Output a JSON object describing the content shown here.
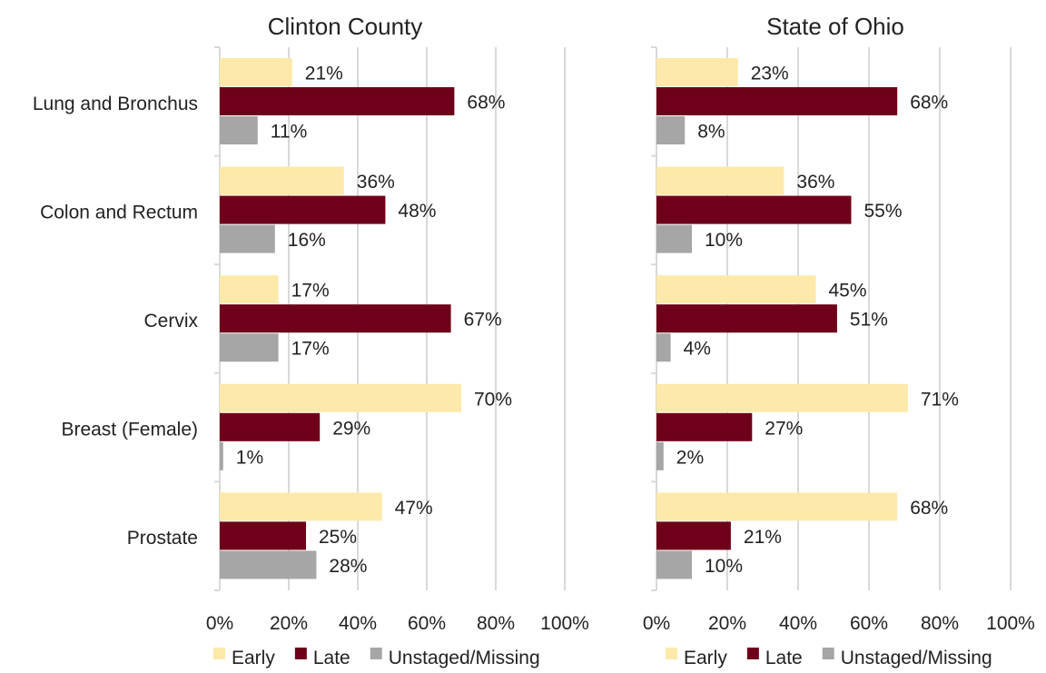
{
  "chart_data": [
    {
      "type": "bar",
      "orientation": "horizontal",
      "title": "Clinton County",
      "categories": [
        "Lung and Bronchus",
        "Colon and Rectum",
        "Cervix",
        "Breast (Female)",
        "Prostate"
      ],
      "series": [
        {
          "name": "Early",
          "color": "#fde9a9",
          "values": [
            21,
            36,
            17,
            70,
            47
          ]
        },
        {
          "name": "Late",
          "color": "#6e0019",
          "values": [
            68,
            48,
            67,
            29,
            25
          ]
        },
        {
          "name": "Unstaged/Missing",
          "color": "#a6a6a6",
          "values": [
            11,
            16,
            17,
            1,
            28
          ]
        }
      ],
      "data_labels": [
        [
          "21%",
          "36%",
          "17%",
          "70%",
          "47%"
        ],
        [
          "68%",
          "48%",
          "67%",
          "29%",
          "25%"
        ],
        [
          "11%",
          "16%",
          "17%",
          "1%",
          "28%"
        ]
      ],
      "xlim": [
        0,
        100
      ],
      "xticks": [
        "0%",
        "20%",
        "40%",
        "60%",
        "80%",
        "100%"
      ],
      "grid": true,
      "legend": "bottom"
    },
    {
      "type": "bar",
      "orientation": "horizontal",
      "title": "State of Ohio",
      "categories": [
        "Lung and Bronchus",
        "Colon and Rectum",
        "Cervix",
        "Breast (Female)",
        "Prostate"
      ],
      "series": [
        {
          "name": "Early",
          "color": "#fde9a9",
          "values": [
            23,
            36,
            45,
            71,
            68
          ]
        },
        {
          "name": "Late",
          "color": "#6e0019",
          "values": [
            68,
            55,
            51,
            27,
            21
          ]
        },
        {
          "name": "Unstaged/Missing",
          "color": "#a6a6a6",
          "values": [
            8,
            10,
            4,
            2,
            10
          ]
        }
      ],
      "data_labels": [
        [
          "23%",
          "36%",
          "45%",
          "71%",
          "68%"
        ],
        [
          "68%",
          "55%",
          "51%",
          "27%",
          "21%"
        ],
        [
          "8%",
          "10%",
          "4%",
          "2%",
          "10%"
        ]
      ],
      "xlim": [
        0,
        100
      ],
      "xticks": [
        "0%",
        "20%",
        "40%",
        "60%",
        "80%",
        "100%"
      ],
      "grid": true,
      "legend": "bottom"
    }
  ]
}
